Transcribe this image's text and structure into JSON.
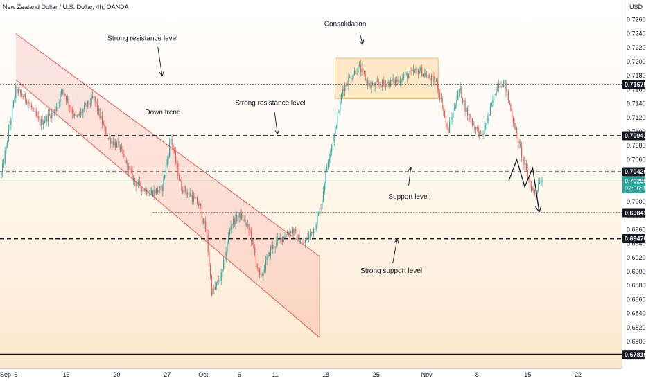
{
  "chart_data": {
    "type": "candlestick",
    "title": "New Zealand Dollar / U.S. Dollar, 4h, OANDA",
    "currency_label": "USD",
    "ylim": [
      0.677,
      0.727
    ],
    "y_ticks": [
      0.68,
      0.682,
      0.684,
      0.686,
      0.688,
      0.69,
      0.692,
      0.694,
      0.696,
      0.698,
      0.7,
      0.702,
      0.704,
      0.706,
      0.708,
      0.71,
      0.712,
      0.714,
      0.716,
      0.718,
      0.72,
      0.722,
      0.724,
      0.726
    ],
    "y_tick_labels": [
      "0.68000",
      "0.68200",
      "0.68400",
      "0.68600",
      "0.68800",
      "0.69000",
      "0.69200",
      "0.69400",
      "0.69600",
      "0.69800",
      "0.70000",
      "0.70200",
      "0.70400",
      "0.70600",
      "0.70800",
      "0.71000",
      "0.71200",
      "0.71400",
      "0.71600",
      "0.71800",
      "0.72000",
      "0.72200",
      "0.72400",
      "0.72600"
    ],
    "x_ticks": [
      {
        "label": "Sep",
        "day": 0
      },
      {
        "label": "6",
        "day": 2
      },
      {
        "label": "13",
        "day": 9
      },
      {
        "label": "20",
        "day": 16
      },
      {
        "label": "27",
        "day": 23
      },
      {
        "label": "Oct",
        "day": 28
      },
      {
        "label": "6",
        "day": 33
      },
      {
        "label": "11",
        "day": 38
      },
      {
        "label": "18",
        "day": 45
      },
      {
        "label": "25",
        "day": 52
      },
      {
        "label": "Nov",
        "day": 59
      },
      {
        "label": "8",
        "day": 66
      },
      {
        "label": "15",
        "day": 73
      },
      {
        "label": "22",
        "day": 80
      }
    ],
    "xlim_days": [
      0,
      86.3
    ],
    "current_price": {
      "value": 0.70295,
      "label": "0.70295",
      "countdown": "02:06:36",
      "color": "#26a69a"
    },
    "price_line": 0.70295,
    "levels": [
      {
        "value": 0.71675,
        "label": "0.71675",
        "style": "dotted"
      },
      {
        "value": 0.70941,
        "label": "0.70941",
        "style": "dashed-bold"
      },
      {
        "value": 0.70426,
        "label": "0.70426",
        "style": "dashed"
      },
      {
        "value": 0.69841,
        "label": "0.69841",
        "style": "dotted",
        "from_day": 21
      },
      {
        "value": 0.6947,
        "label": "0.69470",
        "style": "dashed-bold"
      },
      {
        "value": 0.67816,
        "label": "0.67816",
        "style": "solid-bold"
      }
    ],
    "channel": {
      "upper": [
        [
          2.0,
          0.724
        ],
        [
          44.1,
          0.6922
        ]
      ],
      "lower": [
        [
          2.0,
          0.7174
        ],
        [
          44.1,
          0.6806
        ]
      ],
      "color": "#ef5350"
    },
    "consolidation_box": {
      "x": [
        46.3,
        60.6
      ],
      "y": [
        0.7147,
        0.7205
      ]
    },
    "annotations": [
      {
        "text": "Strong resistance level",
        "at": [
          19.6,
          0.723
        ],
        "arrow_from": [
          21.7,
          0.7221
        ],
        "arrow_to": [
          22.3,
          0.718
        ]
      },
      {
        "text": "Down trend",
        "at": [
          22.4,
          0.7125
        ]
      },
      {
        "text": "Strong resistance level",
        "at": [
          37.3,
          0.7138
        ],
        "arrow_from": [
          37.9,
          0.7128
        ],
        "arrow_to": [
          38.3,
          0.7097
        ]
      },
      {
        "text": "Consolidation",
        "at": [
          47.7,
          0.7251
        ],
        "arrow_from": [
          49.7,
          0.7242
        ],
        "arrow_to": [
          50.1,
          0.7225
        ]
      },
      {
        "text": "Support level",
        "at": [
          56.5,
          0.7004
        ],
        "arrow_from": [
          56.5,
          0.7023
        ],
        "arrow_to": [
          56.8,
          0.7049
        ]
      },
      {
        "text": "Strong support level",
        "at": [
          54.1,
          0.6898
        ],
        "arrow_from": [
          54.3,
          0.6912
        ],
        "arrow_to": [
          54.9,
          0.6946
        ]
      }
    ],
    "projection": {
      "points": [
        [
          70.4,
          0.703
        ],
        [
          71.5,
          0.706
        ],
        [
          72.6,
          0.7021
        ],
        [
          73.7,
          0.7048
        ],
        [
          74.6,
          0.6986
        ]
      ]
    },
    "candle_colors": {
      "up": "#26a69a",
      "down": "#ef5350"
    }
  }
}
